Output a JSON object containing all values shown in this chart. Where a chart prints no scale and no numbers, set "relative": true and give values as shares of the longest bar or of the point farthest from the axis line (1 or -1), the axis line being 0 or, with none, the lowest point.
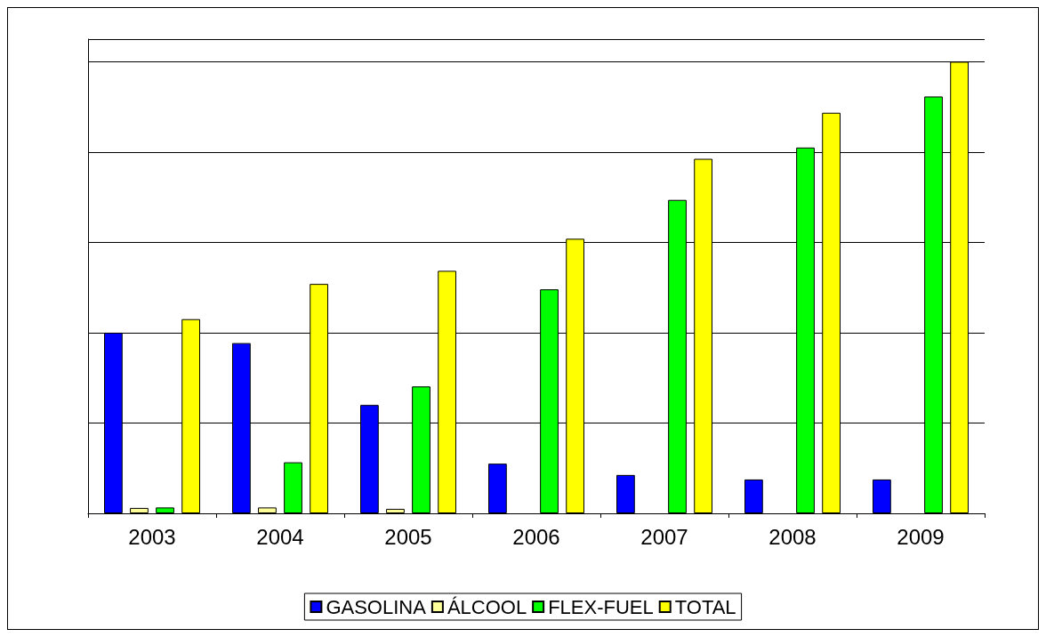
{
  "chart_data": {
    "type": "bar",
    "relative": true,
    "categories": [
      "2003",
      "2004",
      "2005",
      "2006",
      "2007",
      "2008",
      "2009"
    ],
    "series": [
      {
        "name": "GASOLINA",
        "color": "#0000ff",
        "values": [
          0.4,
          0.377,
          0.24,
          0.11,
          0.085,
          0.075,
          0.075
        ]
      },
      {
        "name": "ÁLCOOL",
        "color": "#ffff99",
        "values": [
          0.012,
          0.013,
          0.01,
          0,
          0,
          0,
          0
        ]
      },
      {
        "name": "FLEX-FUEL",
        "color": "#00ff00",
        "values": [
          0.013,
          0.113,
          0.281,
          0.496,
          0.694,
          0.81,
          0.923
        ]
      },
      {
        "name": "TOTAL",
        "color": "#ffff00",
        "values": [
          0.43,
          0.508,
          0.537,
          0.608,
          0.785,
          0.887,
          1
        ]
      }
    ],
    "grid": "y",
    "legend": "bottom"
  }
}
